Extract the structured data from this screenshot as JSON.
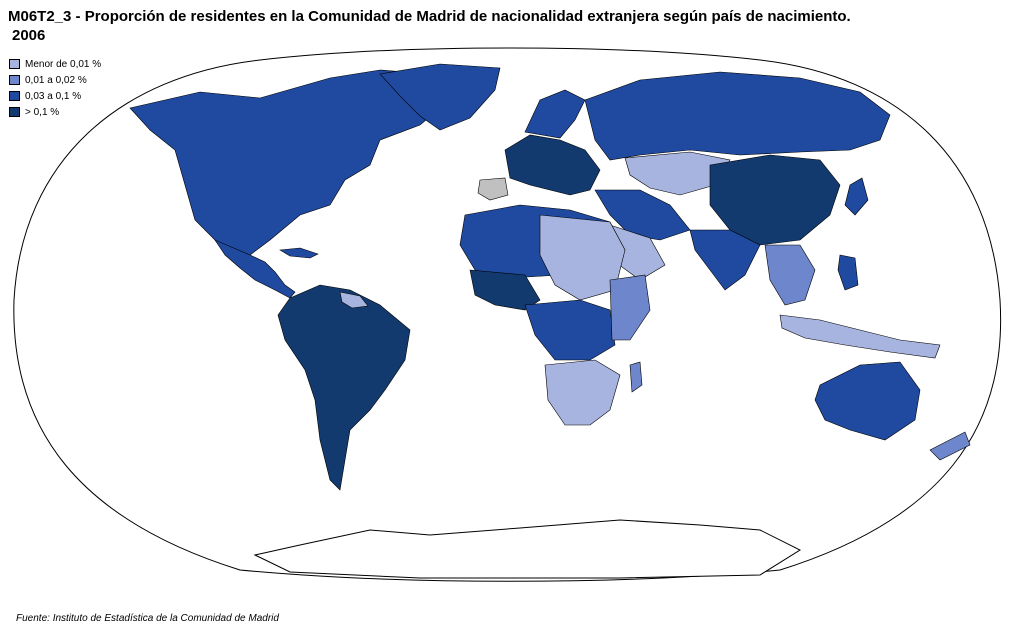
{
  "title": {
    "line1": "M06T2_3 - Proporción de residentes en la Comunidad de Madrid  de nacionalidad extranjera según país de nacimiento.",
    "line2": "2006"
  },
  "legend": [
    {
      "label": "Menor de 0,01 %",
      "color": "#a8b4e0"
    },
    {
      "label": "0,01 a 0,02 %",
      "color": "#6e86cc"
    },
    {
      "label": "0,03 a 0,1 %",
      "color": "#1f4aa0"
    },
    {
      "label": "> 0,1 %",
      "color": "#123a6e"
    }
  ],
  "colors": {
    "none": "#c0c0c0",
    "ocean": "#ffffff",
    "border": "#000000"
  },
  "source": "Fuente: Instituto de Estadística de la Comunidad de Madrid"
}
